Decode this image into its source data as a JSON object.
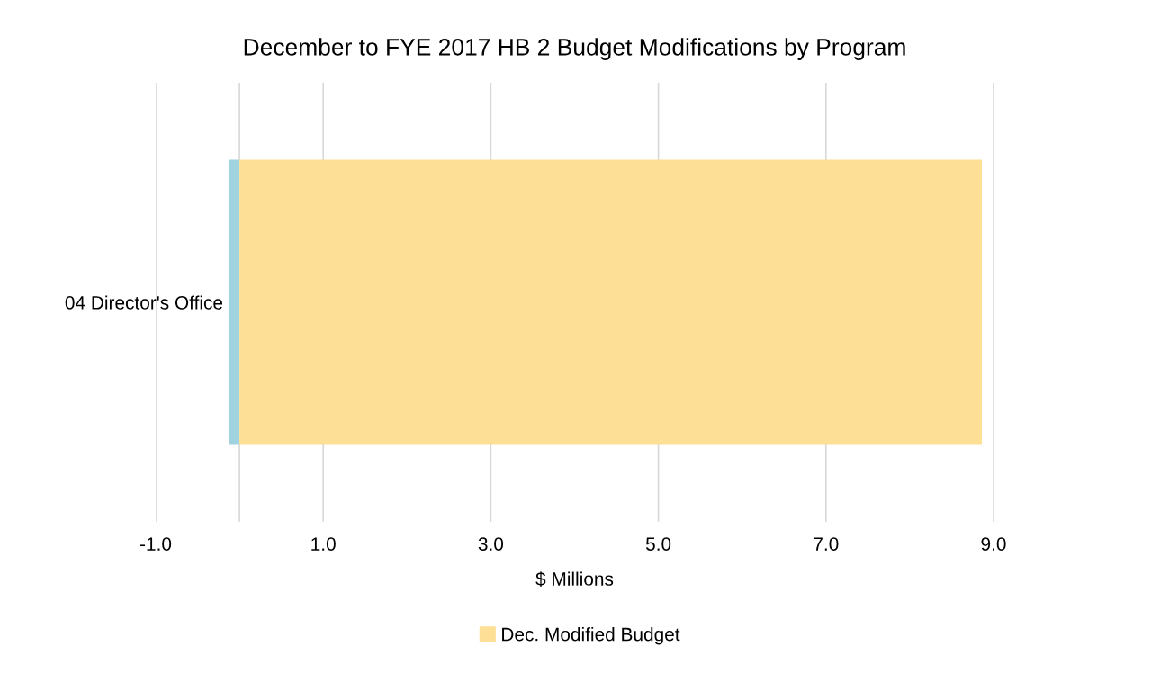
{
  "chart_data": {
    "type": "bar",
    "orientation": "horizontal",
    "stacked": true,
    "title": "December to FYE 2017 HB 2 Budget Modifications by Program",
    "xlabel": "$ Millions",
    "categories": [
      "04 Director's Office"
    ],
    "series": [
      {
        "color": "#a0d2df",
        "values": [
          -0.13
        ]
      },
      {
        "name": "Dec. Modified Budget",
        "color": "#fde095",
        "values": [
          8.86
        ]
      }
    ],
    "xlim": [
      -1,
      9
    ],
    "xticks": [
      {
        "value": -1,
        "label": "-1.0"
      },
      {
        "value": 0,
        "label": null
      },
      {
        "value": 1,
        "label": "1.0"
      },
      {
        "value": 3,
        "label": "3.0"
      },
      {
        "value": 5,
        "label": "5.0"
      },
      {
        "value": 7,
        "label": "7.0"
      },
      {
        "value": 9,
        "label": "9.0"
      }
    ],
    "grid": "x",
    "legend": "bottom"
  }
}
